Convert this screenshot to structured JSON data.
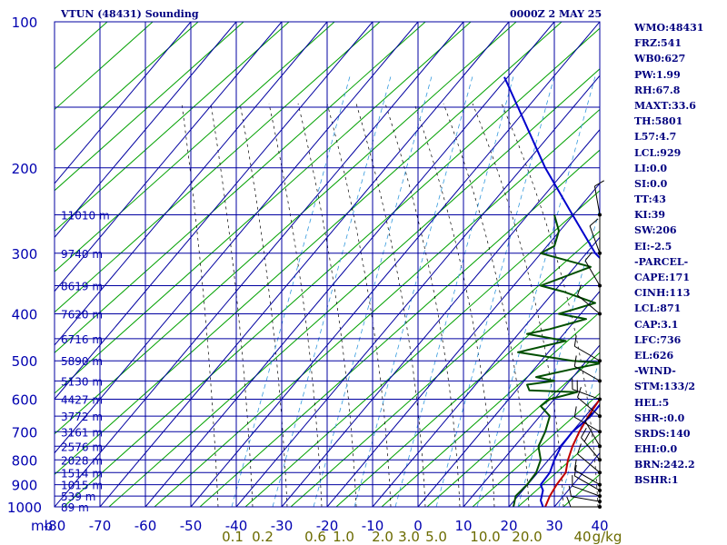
{
  "header": {
    "station": "VTUN (48431) Sounding",
    "time": "0000Z  2 MAY 25"
  },
  "indices": [
    "WMO:48431",
    "FRZ:541",
    "WB0:627",
    "PW:1.99",
    "RH:67.8",
    "MAXT:33.6",
    "TH:5801",
    "L57:4.7",
    "LCL:929",
    "LI:0.0",
    "SI:0.0",
    "TT:43",
    "KI:39",
    "SW:206",
    "EI:-2.5",
    "-PARCEL-",
    "CAPE:171",
    "CINH:113",
    "LCL:871",
    "CAP:3.1",
    "LFC:736",
    "EL:626",
    "-WIND-",
    "STM:133/2",
    "HEL:5",
    "SHR-:0.0",
    "SRDS:140",
    "EHI:0.0",
    "BRN:242.2",
    "BSHR:1"
  ],
  "chart_data": {
    "type": "skew-t",
    "pressure_ticks": [
      100,
      200,
      300,
      400,
      500,
      600,
      700,
      800,
      900,
      1000
    ],
    "temperature_ticks": [
      -80,
      -70,
      -60,
      -50,
      -40,
      -30,
      -20,
      -10,
      0,
      10,
      20,
      30,
      40
    ],
    "pressure_unit_label": "mb",
    "mixing_ratio_ticks": [
      "0.1",
      "0.2",
      "0.6",
      "1.0",
      "2.0",
      "3.0",
      "5.0",
      "10.0",
      "20.0",
      "40",
      "g/kg"
    ],
    "height_labels": [
      {
        "p": 250,
        "label": "11010 m"
      },
      {
        "p": 300,
        "label": "9740 m"
      },
      {
        "p": 350,
        "label": "8619 m"
      },
      {
        "p": 400,
        "label": "7620 m"
      },
      {
        "p": 450,
        "label": "6716 m"
      },
      {
        "p": 500,
        "label": "5890 m"
      },
      {
        "p": 550,
        "label": "5130 m"
      },
      {
        "p": 600,
        "label": "4427 m"
      },
      {
        "p": 650,
        "label": "3772 m"
      },
      {
        "p": 700,
        "label": "3161 m"
      },
      {
        "p": 750,
        "label": "2576 m"
      },
      {
        "p": 800,
        "label": "2028 m"
      },
      {
        "p": 850,
        "label": "1514 m"
      },
      {
        "p": 900,
        "label": "1015 m"
      },
      {
        "p": 950,
        "label": "539 m"
      },
      {
        "p": 1000,
        "label": "89 m"
      }
    ],
    "temperature_profile": [
      [
        1000,
        27.5
      ],
      [
        970,
        24
      ],
      [
        925,
        20
      ],
      [
        900,
        17
      ],
      [
        850,
        14
      ],
      [
        800,
        10
      ],
      [
        750,
        6.5
      ],
      [
        700,
        4
      ],
      [
        650,
        3
      ],
      [
        600,
        1
      ],
      [
        560,
        -1
      ],
      [
        550,
        1.5
      ],
      [
        500,
        -3
      ],
      [
        450,
        -8
      ],
      [
        400,
        -13
      ],
      [
        370,
        -15
      ],
      [
        350,
        -19
      ],
      [
        300,
        -31
      ],
      [
        250,
        -41
      ],
      [
        200,
        -52
      ],
      [
        150,
        -63
      ],
      [
        130,
        -68
      ]
    ],
    "dewpoint_profile": [
      [
        1000,
        21
      ],
      [
        950,
        16.5
      ],
      [
        900,
        14
      ],
      [
        850,
        11
      ],
      [
        800,
        7
      ],
      [
        750,
        1.5
      ],
      [
        700,
        -2
      ],
      [
        650,
        -6
      ],
      [
        620,
        -11
      ],
      [
        600,
        -11
      ],
      [
        580,
        -7
      ],
      [
        575,
        -18
      ],
      [
        560,
        -20
      ],
      [
        550,
        -15
      ],
      [
        540,
        -20
      ],
      [
        520,
        -14
      ],
      [
        505,
        -9
      ],
      [
        500,
        -16
      ],
      [
        480,
        -30
      ],
      [
        455,
        -22
      ],
      [
        440,
        -32
      ],
      [
        430,
        -28
      ],
      [
        410,
        -22
      ],
      [
        400,
        -29
      ],
      [
        380,
        -23
      ],
      [
        360,
        -32
      ],
      [
        350,
        -38
      ],
      [
        320,
        -30
      ],
      [
        300,
        -43
      ],
      [
        290,
        -41
      ],
      [
        270,
        -42
      ],
      [
        250,
        -45
      ]
    ],
    "parcel_profile": [
      [
        1000,
        28
      ],
      [
        950,
        24
      ],
      [
        900,
        20.5
      ],
      [
        850,
        17.5
      ],
      [
        800,
        13
      ],
      [
        750,
        9
      ],
      [
        700,
        5.5
      ],
      [
        650,
        2.5
      ],
      [
        600,
        0
      ],
      [
        550,
        -3
      ],
      [
        500,
        -6.5
      ],
      [
        450,
        -11
      ],
      [
        400,
        -16
      ],
      [
        350,
        -22
      ],
      [
        300,
        -30
      ]
    ],
    "wind_barbs": [
      {
        "p": 1000,
        "dir": 270,
        "spd": 10
      },
      {
        "p": 975,
        "dir": 280,
        "spd": 10
      },
      {
        "p": 950,
        "dir": 290,
        "spd": 10
      },
      {
        "p": 925,
        "dir": 300,
        "spd": 10
      },
      {
        "p": 900,
        "dir": 300,
        "spd": 10
      },
      {
        "p": 850,
        "dir": 310,
        "spd": 10
      },
      {
        "p": 800,
        "dir": 320,
        "spd": 15
      },
      {
        "p": 750,
        "dir": 330,
        "spd": 10
      },
      {
        "p": 700,
        "dir": 300,
        "spd": 10
      },
      {
        "p": 650,
        "dir": 310,
        "spd": 10
      },
      {
        "p": 600,
        "dir": 290,
        "spd": 15
      },
      {
        "p": 550,
        "dir": 300,
        "spd": 10
      },
      {
        "p": 500,
        "dir": 300,
        "spd": 10
      },
      {
        "p": 400,
        "dir": 310,
        "spd": 10
      },
      {
        "p": 350,
        "dir": 330,
        "spd": 10
      },
      {
        "p": 300,
        "dir": 340,
        "spd": 10
      },
      {
        "p": 250,
        "dir": 350,
        "spd": 10
      }
    ],
    "colors": {
      "grid": "#0000a0",
      "temperature": "#00003f",
      "dewpoint": "#004f00",
      "parcel": "#c00000",
      "env_trace": "#0000cc",
      "dry_adiabat": "#00a000",
      "moist_adiabat": "#000000",
      "mixing_ratio": "#3399dd",
      "label": "#0000b0",
      "mixing_label": "#6b6b00"
    }
  }
}
